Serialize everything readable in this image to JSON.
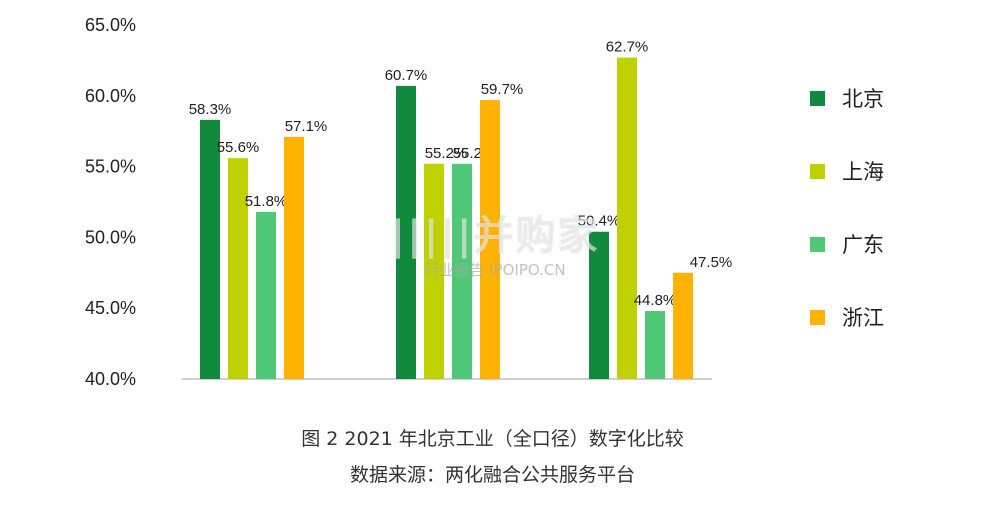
{
  "chart_data": {
    "type": "bar",
    "title": "",
    "xlabel": "",
    "ylabel": "",
    "ylim": [
      40,
      65
    ],
    "yticks": [
      "40.0%",
      "45.0%",
      "50.0%",
      "55.0%",
      "60.0%",
      "65.0%"
    ],
    "grid": false,
    "legend_position": "right",
    "groups": [
      "",
      "",
      ""
    ],
    "series": [
      {
        "name": "北京",
        "color": "#128a3e",
        "values": [
          58.3,
          60.7,
          50.4
        ],
        "labels": [
          "58.3%",
          "60.7%",
          "50.4%"
        ]
      },
      {
        "name": "上海",
        "color": "#bfd100",
        "values": [
          55.6,
          55.2,
          62.7
        ],
        "labels": [
          "55.6%",
          "55.2%",
          "62.7%"
        ]
      },
      {
        "name": "广东",
        "color": "#4fc878",
        "values": [
          51.8,
          55.2,
          44.8
        ],
        "labels": [
          "51.8%",
          "55.2%",
          "44.8%"
        ]
      },
      {
        "name": "浙江",
        "color": "#ffb300",
        "values": [
          57.1,
          59.7,
          47.5
        ],
        "labels": [
          "57.1%",
          "59.7%",
          "47.5%"
        ]
      }
    ]
  },
  "caption": {
    "title": "图 2 2021 年北京工业（全口径）数字化比较",
    "source": "数据来源：两化融合公共服务平台"
  },
  "watermark": {
    "main": "|||||并购家",
    "sub": "行业报告 IPOIPO.CN"
  }
}
